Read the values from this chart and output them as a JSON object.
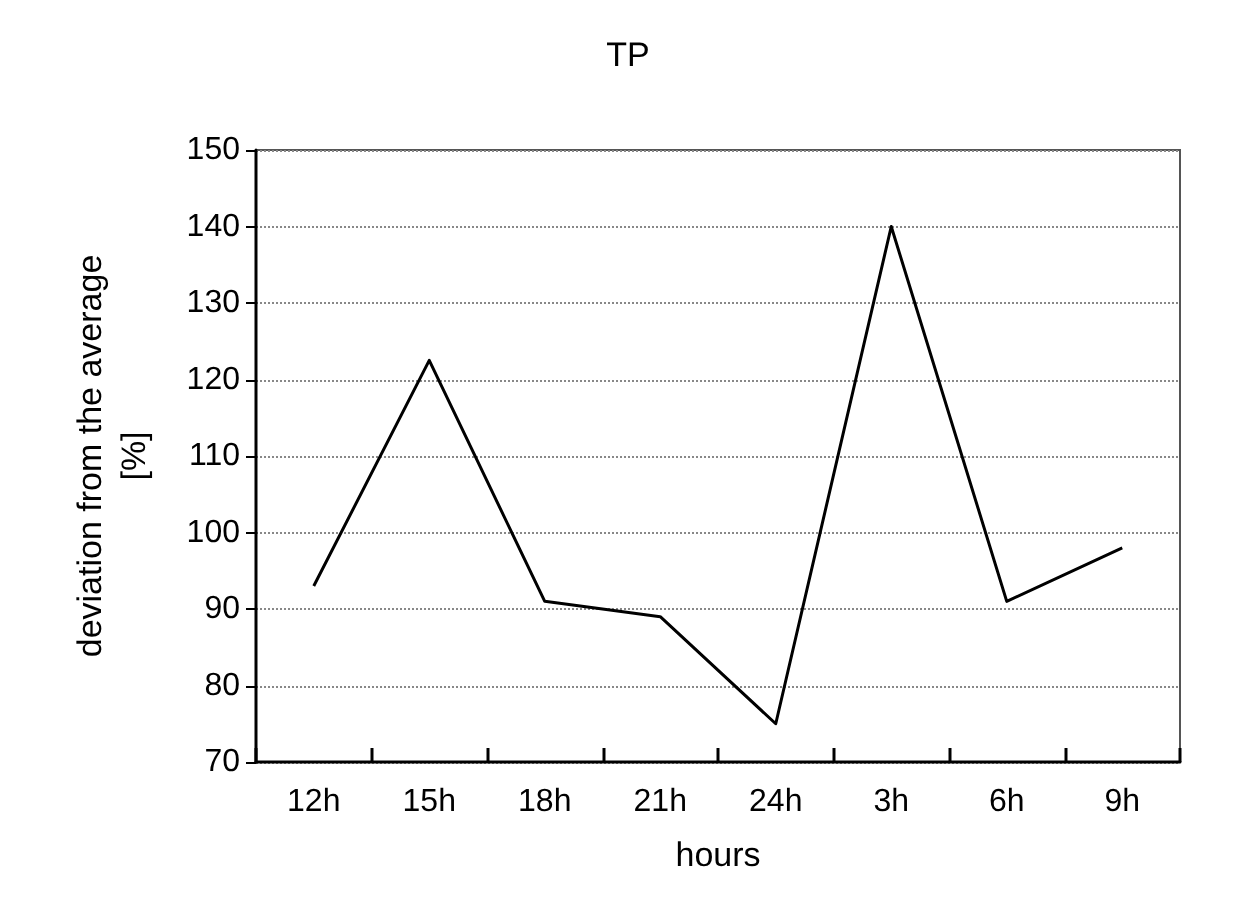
{
  "chart_data": {
    "type": "line",
    "title": "TP",
    "xlabel": "hours",
    "ylabel": "deviation from the average\n[%]",
    "categories": [
      "12h",
      "15h",
      "18h",
      "21h",
      "24h",
      "3h",
      "6h",
      "9h"
    ],
    "series": [
      {
        "color": "#000000",
        "values": [
          93,
          122.5,
          91,
          89,
          75,
          140,
          91,
          98
        ]
      }
    ],
    "ylim": [
      70,
      150
    ],
    "yticks": [
      70,
      80,
      90,
      100,
      110,
      120,
      130,
      140,
      150
    ],
    "grid": "y",
    "marker": "none",
    "line_style": "solid"
  }
}
